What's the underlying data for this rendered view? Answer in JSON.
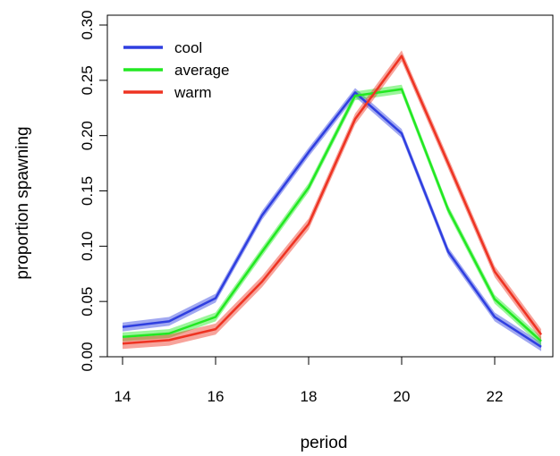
{
  "chart_data": {
    "type": "line",
    "xlabel": "period",
    "ylabel": "proportion spawning",
    "xlim": [
      14,
      23
    ],
    "ylim": [
      0,
      0.3
    ],
    "xticks": [
      14,
      16,
      18,
      20,
      22
    ],
    "xtick_labels": [
      "14",
      "16",
      "18",
      "20",
      "22"
    ],
    "yticks": [
      0,
      0.05,
      0.1,
      0.15,
      0.2,
      0.25,
      0.3
    ],
    "ytick_labels": [
      "0.00",
      "0.05",
      "0.10",
      "0.15",
      "0.20",
      "0.25",
      "0.30"
    ],
    "grid": false,
    "legend_position": "top-left",
    "x": [
      14,
      15,
      16,
      17,
      18,
      19,
      20,
      21,
      22,
      23
    ],
    "series": [
      {
        "name": "cool",
        "color": "#2f3fe0",
        "values": [
          0.027,
          0.032,
          0.053,
          0.128,
          0.185,
          0.239,
          0.202,
          0.095,
          0.036,
          0.009
        ],
        "band": 0.004
      },
      {
        "name": "average",
        "color": "#22e822",
        "values": [
          0.018,
          0.021,
          0.036,
          0.095,
          0.153,
          0.236,
          0.242,
          0.133,
          0.052,
          0.014
        ],
        "band": 0.004
      },
      {
        "name": "warm",
        "color": "#ee3322",
        "values": [
          0.012,
          0.015,
          0.025,
          0.068,
          0.12,
          0.215,
          0.272,
          0.175,
          0.077,
          0.02
        ],
        "band": 0.005
      }
    ]
  }
}
